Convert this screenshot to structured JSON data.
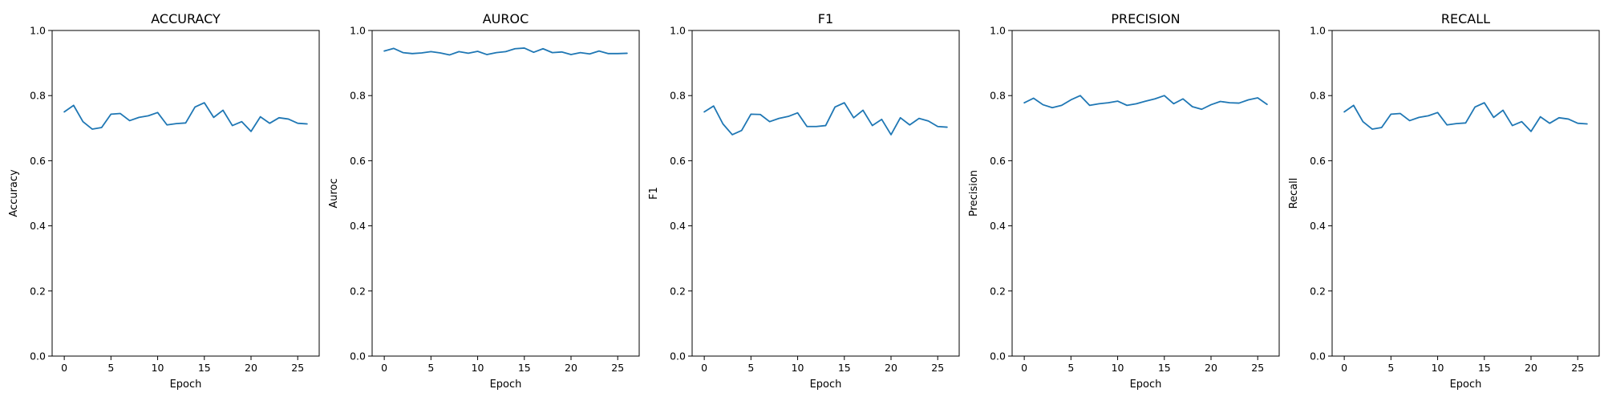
{
  "chart_data": [
    {
      "type": "line",
      "title": "ACCURACY",
      "xlabel": "Epoch",
      "ylabel": "Accuracy",
      "xlim": [
        -1.3,
        27.3
      ],
      "ylim": [
        0.0,
        1.0
      ],
      "xticks": [
        0,
        5,
        10,
        15,
        20,
        25
      ],
      "yticks": [
        0.0,
        0.2,
        0.4,
        0.6,
        0.8,
        1.0
      ],
      "grid": false,
      "color": "#1f77b4",
      "x": [
        0,
        1,
        2,
        3,
        4,
        5,
        6,
        7,
        8,
        9,
        10,
        11,
        12,
        13,
        14,
        15,
        16,
        17,
        18,
        19,
        20,
        21,
        22,
        23,
        24,
        25,
        26
      ],
      "values": [
        0.75,
        0.77,
        0.72,
        0.697,
        0.702,
        0.743,
        0.745,
        0.723,
        0.733,
        0.738,
        0.748,
        0.71,
        0.714,
        0.716,
        0.765,
        0.778,
        0.733,
        0.755,
        0.708,
        0.72,
        0.69,
        0.735,
        0.715,
        0.732,
        0.728,
        0.715,
        0.713
      ]
    },
    {
      "type": "line",
      "title": "AUROC",
      "xlabel": "Epoch",
      "ylabel": "Auroc",
      "xlim": [
        -1.3,
        27.3
      ],
      "ylim": [
        0.0,
        1.0
      ],
      "xticks": [
        0,
        5,
        10,
        15,
        20,
        25
      ],
      "yticks": [
        0.0,
        0.2,
        0.4,
        0.6,
        0.8,
        1.0
      ],
      "grid": false,
      "color": "#1f77b4",
      "x": [
        0,
        1,
        2,
        3,
        4,
        5,
        6,
        7,
        8,
        9,
        10,
        11,
        12,
        13,
        14,
        15,
        16,
        17,
        18,
        19,
        20,
        21,
        22,
        23,
        24,
        25,
        26
      ],
      "values": [
        0.937,
        0.945,
        0.932,
        0.929,
        0.931,
        0.935,
        0.931,
        0.925,
        0.935,
        0.93,
        0.936,
        0.926,
        0.932,
        0.935,
        0.944,
        0.946,
        0.933,
        0.944,
        0.932,
        0.934,
        0.926,
        0.932,
        0.928,
        0.937,
        0.929,
        0.929,
        0.93
      ]
    },
    {
      "type": "line",
      "title": "F1",
      "xlabel": "Epoch",
      "ylabel": "F1",
      "xlim": [
        -1.3,
        27.3
      ],
      "ylim": [
        0.0,
        1.0
      ],
      "xticks": [
        0,
        5,
        10,
        15,
        20,
        25
      ],
      "yticks": [
        0.0,
        0.2,
        0.4,
        0.6,
        0.8,
        1.0
      ],
      "grid": false,
      "color": "#1f77b4",
      "x": [
        0,
        1,
        2,
        3,
        4,
        5,
        6,
        7,
        8,
        9,
        10,
        11,
        12,
        13,
        14,
        15,
        16,
        17,
        18,
        19,
        20,
        21,
        22,
        23,
        24,
        25,
        26
      ],
      "values": [
        0.75,
        0.768,
        0.713,
        0.68,
        0.693,
        0.743,
        0.742,
        0.72,
        0.73,
        0.736,
        0.747,
        0.705,
        0.705,
        0.708,
        0.765,
        0.778,
        0.732,
        0.755,
        0.708,
        0.727,
        0.68,
        0.732,
        0.71,
        0.73,
        0.722,
        0.705,
        0.703
      ]
    },
    {
      "type": "line",
      "title": "PRECISION",
      "xlabel": "Epoch",
      "ylabel": "Precision",
      "xlim": [
        -1.3,
        27.3
      ],
      "ylim": [
        0.0,
        1.0
      ],
      "xticks": [
        0,
        5,
        10,
        15,
        20,
        25
      ],
      "yticks": [
        0.0,
        0.2,
        0.4,
        0.6,
        0.8,
        1.0
      ],
      "grid": false,
      "color": "#1f77b4",
      "x": [
        0,
        1,
        2,
        3,
        4,
        5,
        6,
        7,
        8,
        9,
        10,
        11,
        12,
        13,
        14,
        15,
        16,
        17,
        18,
        19,
        20,
        21,
        22,
        23,
        24,
        25,
        26
      ],
      "values": [
        0.778,
        0.792,
        0.772,
        0.763,
        0.77,
        0.787,
        0.8,
        0.77,
        0.775,
        0.778,
        0.783,
        0.77,
        0.775,
        0.783,
        0.79,
        0.8,
        0.775,
        0.79,
        0.766,
        0.758,
        0.772,
        0.782,
        0.778,
        0.777,
        0.787,
        0.793,
        0.773
      ]
    },
    {
      "type": "line",
      "title": "RECALL",
      "xlabel": "Epoch",
      "ylabel": "Recall",
      "xlim": [
        -1.3,
        27.3
      ],
      "ylim": [
        0.0,
        1.0
      ],
      "xticks": [
        0,
        5,
        10,
        15,
        20,
        25
      ],
      "yticks": [
        0.0,
        0.2,
        0.4,
        0.6,
        0.8,
        1.0
      ],
      "grid": false,
      "color": "#1f77b4",
      "x": [
        0,
        1,
        2,
        3,
        4,
        5,
        6,
        7,
        8,
        9,
        10,
        11,
        12,
        13,
        14,
        15,
        16,
        17,
        18,
        19,
        20,
        21,
        22,
        23,
        24,
        25,
        26
      ],
      "values": [
        0.75,
        0.77,
        0.72,
        0.697,
        0.702,
        0.743,
        0.745,
        0.723,
        0.733,
        0.738,
        0.748,
        0.71,
        0.714,
        0.716,
        0.765,
        0.778,
        0.733,
        0.755,
        0.708,
        0.72,
        0.69,
        0.735,
        0.715,
        0.732,
        0.728,
        0.715,
        0.713
      ]
    }
  ]
}
